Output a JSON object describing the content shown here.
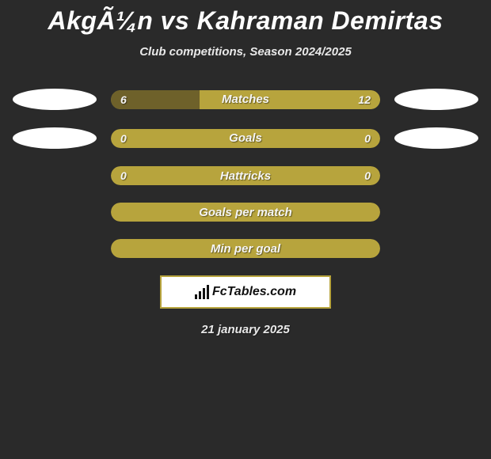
{
  "title": "AkgÃ¼n vs Kahraman Demirtas",
  "subtitle": "Club competitions, Season 2024/2025",
  "date": "21 january 2025",
  "logo_text": "FcTables.com",
  "colors": {
    "bar_bg": "#b7a43d",
    "bar_dim": "#6e612a",
    "page_bg": "#2a2a2a",
    "badge_bg": "#ffffff"
  },
  "stats": [
    {
      "label": "Matches",
      "left_value": "6",
      "right_value": "12",
      "left_pct": 33,
      "right_pct": 67,
      "show_badges": true,
      "show_values": true,
      "left_color": "#6e612a",
      "right_color": "#b7a43d",
      "bg_color": "#b7a43d"
    },
    {
      "label": "Goals",
      "left_value": "0",
      "right_value": "0",
      "left_pct": 0,
      "right_pct": 0,
      "show_badges": true,
      "show_values": true,
      "left_color": "#6e612a",
      "right_color": "#b7a43d",
      "bg_color": "#b7a43d"
    },
    {
      "label": "Hattricks",
      "left_value": "0",
      "right_value": "0",
      "left_pct": 0,
      "right_pct": 0,
      "show_badges": false,
      "show_values": true,
      "left_color": "#6e612a",
      "right_color": "#b7a43d",
      "bg_color": "#b7a43d"
    },
    {
      "label": "Goals per match",
      "left_value": "",
      "right_value": "",
      "left_pct": 0,
      "right_pct": 0,
      "show_badges": false,
      "show_values": false,
      "left_color": "#6e612a",
      "right_color": "#b7a43d",
      "bg_color": "#b7a43d"
    },
    {
      "label": "Min per goal",
      "left_value": "",
      "right_value": "",
      "left_pct": 0,
      "right_pct": 0,
      "show_badges": false,
      "show_values": false,
      "left_color": "#6e612a",
      "right_color": "#b7a43d",
      "bg_color": "#b7a43d"
    }
  ]
}
